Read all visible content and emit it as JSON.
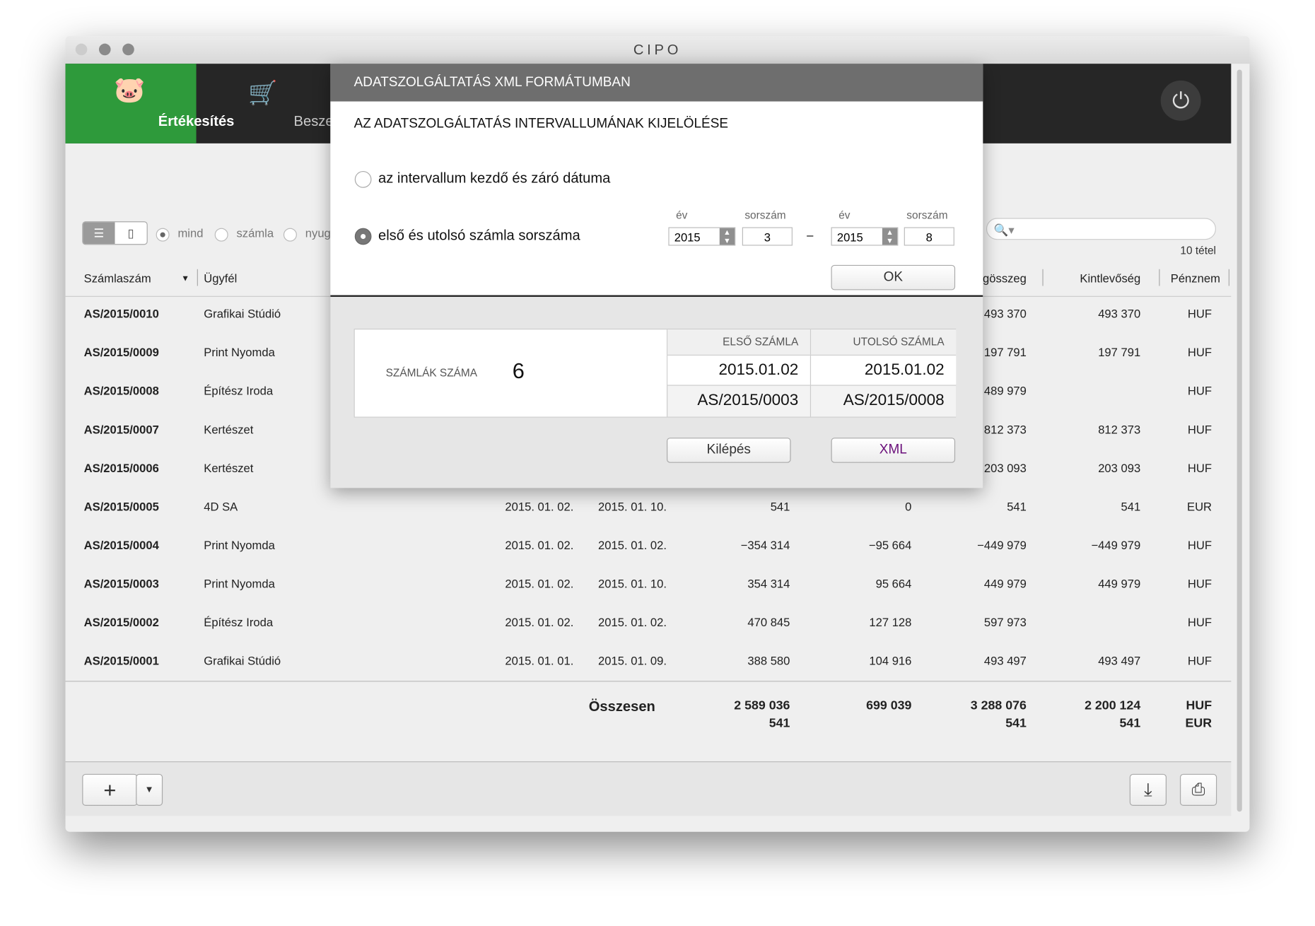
{
  "window": {
    "title": "CIPO"
  },
  "nav": {
    "tabs": [
      {
        "label": "Értékesítés",
        "icon": "piggy-bank-icon",
        "active": true
      },
      {
        "label": "Beszerzés",
        "icon": "cart-icon",
        "active": false
      }
    ],
    "power_icon": "power-icon"
  },
  "colors": {
    "accent": "#2e9a3b",
    "nav_bg": "#262626",
    "modal_title_bg": "#6e6e6e",
    "xml_text": "#6a0f7a"
  },
  "toolbar": {
    "filters": [
      {
        "label": "mind",
        "selected": true
      },
      {
        "label": "számla",
        "selected": false
      },
      {
        "label": "nyug",
        "selected": false
      }
    ],
    "search_placeholder": "",
    "item_count": "10 tétel"
  },
  "table": {
    "headers": {
      "number": "Számlaszám",
      "client": "Ügyfél",
      "gross": "Végösszeg",
      "outstanding": "Kintlevőség",
      "currency": "Pénznem"
    },
    "rows": [
      {
        "number": "AS/2015/0010",
        "client": "Grafikai Stúdió",
        "issued": "",
        "due": "",
        "net": "",
        "vat": "",
        "gross": "493 370",
        "outstanding": "493 370",
        "currency": "HUF"
      },
      {
        "number": "AS/2015/0009",
        "client": "Print Nyomda",
        "issued": "",
        "due": "",
        "net": "",
        "vat": "",
        "gross": "197 791",
        "outstanding": "197 791",
        "currency": "HUF"
      },
      {
        "number": "AS/2015/0008",
        "client": "Építész Iroda",
        "issued": "",
        "due": "",
        "net": "",
        "vat": "",
        "gross": "489 979",
        "outstanding": "",
        "currency": "HUF"
      },
      {
        "number": "AS/2015/0007",
        "client": "Kertészet",
        "issued": "",
        "due": "",
        "net": "",
        "vat": "",
        "gross": "812 373",
        "outstanding": "812 373",
        "currency": "HUF"
      },
      {
        "number": "AS/2015/0006",
        "client": "Kertészet",
        "issued": "",
        "due": "",
        "net": "",
        "vat": "",
        "gross": "203 093",
        "outstanding": "203 093",
        "currency": "HUF"
      },
      {
        "number": "AS/2015/0005",
        "client": "4D SA",
        "issued": "2015. 01. 02.",
        "due": "2015. 01. 10.",
        "net": "541",
        "vat": "0",
        "gross": "541",
        "outstanding": "541",
        "currency": "EUR"
      },
      {
        "number": "AS/2015/0004",
        "client": "Print Nyomda",
        "issued": "2015. 01. 02.",
        "due": "2015. 01. 02.",
        "net": "−354 314",
        "vat": "−95 664",
        "gross": "−449 979",
        "outstanding": "−449 979",
        "currency": "HUF"
      },
      {
        "number": "AS/2015/0003",
        "client": "Print Nyomda",
        "issued": "2015. 01. 02.",
        "due": "2015. 01. 10.",
        "net": "354 314",
        "vat": "95 664",
        "gross": "449 979",
        "outstanding": "449 979",
        "currency": "HUF"
      },
      {
        "number": "AS/2015/0002",
        "client": "Építész Iroda",
        "issued": "2015. 01. 02.",
        "due": "2015. 01. 02.",
        "net": "470 845",
        "vat": "127 128",
        "gross": "597 973",
        "outstanding": "",
        "currency": "HUF"
      },
      {
        "number": "AS/2015/0001",
        "client": "Grafikai Stúdió",
        "issued": "2015. 01. 01.",
        "due": "2015. 01. 09.",
        "net": "388 580",
        "vat": "104 916",
        "gross": "493 497",
        "outstanding": "493 497",
        "currency": "HUF"
      }
    ],
    "totals": {
      "label": "Összesen",
      "net": [
        "2 589 036",
        "541"
      ],
      "vat": "699 039",
      "gross": [
        "3 288 076",
        "541"
      ],
      "outstanding": [
        "2 200 124",
        "541"
      ],
      "currency": [
        "HUF",
        "EUR"
      ]
    }
  },
  "modal": {
    "title": "ADATSZOLGÁLTATÁS XML FORMÁTUMBAN",
    "subtitle": "AZ ADATSZOLGÁLTATÁS INTERVALLUMÁNAK KIJELÖLÉSE",
    "option_dates": "az intervallum kezdő és záró dátuma",
    "option_numbers": "első és utolsó számla sorszáma",
    "selected_option": "option_numbers",
    "year_label": "év",
    "seq_label": "sorszám",
    "from_year": "2015",
    "from_seq": "3",
    "dash": "–",
    "to_year": "2015",
    "to_seq": "8",
    "ok": "OK",
    "count_label": "SZÁMLÁK SZÁMA",
    "count": "6",
    "first_label": "ELSŐ SZÁMLA",
    "last_label": "UTOLSÓ SZÁMLA",
    "first_date": "2015.01.02",
    "last_date": "2015.01.02",
    "first_number": "AS/2015/0003",
    "last_number": "AS/2015/0008",
    "exit": "Kilépés",
    "xml": "XML"
  }
}
